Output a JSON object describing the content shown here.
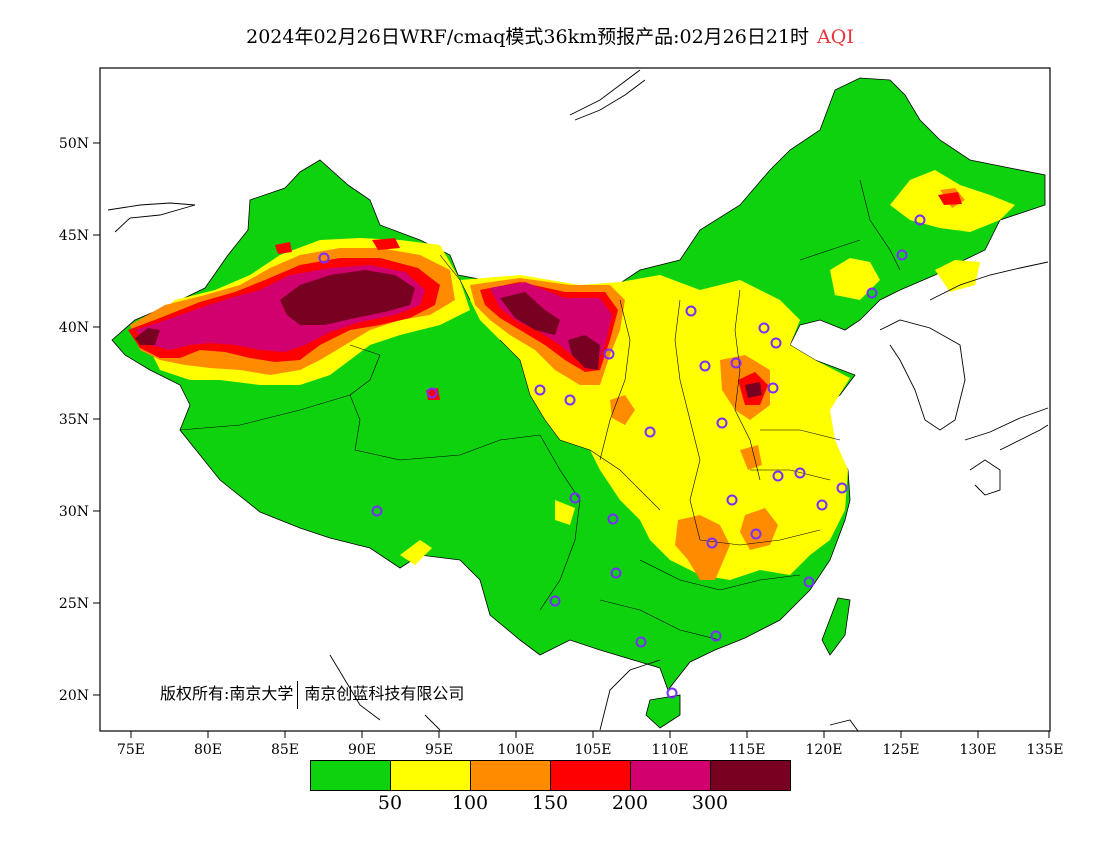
{
  "title": {
    "main": "2024年02月26日WRF/cmaq模式36km预报产品:02月26日21时",
    "variable": "AQI"
  },
  "axes": {
    "lat_labels": [
      "50N",
      "45N",
      "40N",
      "35N",
      "30N",
      "25N",
      "20N"
    ],
    "lon_labels": [
      "75E",
      "80E",
      "85E",
      "90E",
      "95E",
      "100E",
      "105E",
      "110E",
      "115E",
      "120E",
      "125E",
      "130E",
      "135E"
    ]
  },
  "copyright": {
    "prefix": "版权所有:南京大学",
    "company": "南京创蓝科技有限公司"
  },
  "legend": {
    "colors": [
      "#0fd20f",
      "#ffff00",
      "#ff8c00",
      "#ff0000",
      "#d2006e",
      "#780020"
    ],
    "labels": [
      "50",
      "100",
      "150",
      "200",
      "300"
    ]
  },
  "colors": {
    "good": "#0fd20f",
    "moderate": "#ffff00",
    "sensitive": "#ff8c00",
    "unhealthy": "#ff0000",
    "very_unhealthy": "#d2006e",
    "hazardous": "#780020",
    "station_marker": "#7b2cff",
    "title_accent": "#e8343a"
  }
}
